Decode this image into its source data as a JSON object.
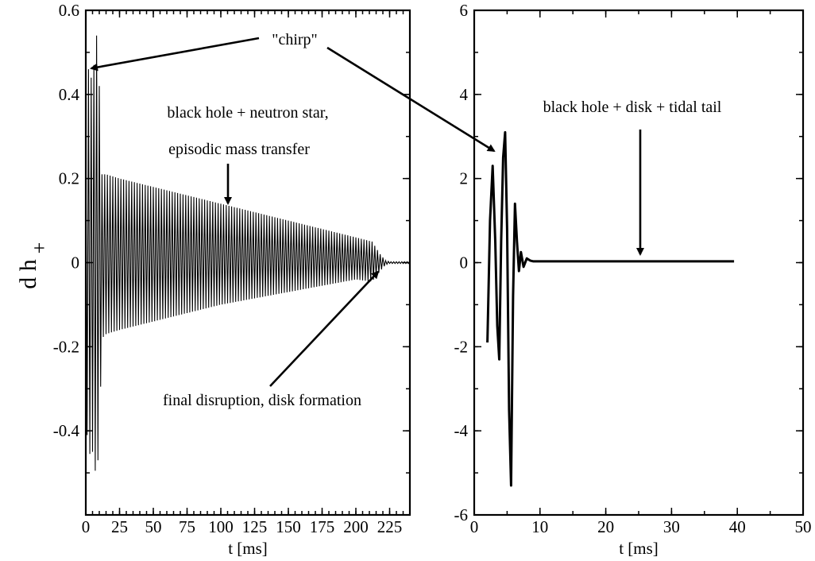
{
  "figure": {
    "ylabel_main": "d h",
    "ylabel_sub": "+"
  },
  "chart_data": [
    {
      "type": "line",
      "title": "",
      "xlabel": "t [ms]",
      "ylabel": "d h+",
      "xlim": [
        0,
        240
      ],
      "ylim": [
        -0.6,
        0.6
      ],
      "xticks": [
        0,
        25,
        50,
        75,
        100,
        125,
        150,
        175,
        200,
        225
      ],
      "xtick_labels": [
        "0",
        "25",
        "50",
        "75",
        "100",
        "125",
        "150",
        "175",
        "200",
        "225"
      ],
      "yticks": [
        -0.4,
        -0.2,
        0,
        0.2,
        0.4,
        0.6
      ],
      "ytick_labels": [
        "-0.4",
        "-0.2",
        "0",
        "0.2",
        "0.4",
        "0.6"
      ],
      "grid": false,
      "series": [
        {
          "style": "dense-oscillation",
          "sample_interval_ms": 1,
          "t_start_ms": 0,
          "t_end_ms": 240,
          "envelope": {
            "t": [
              0,
              2,
              4,
              6,
              8,
              10,
              12,
              15,
              25,
              50,
              75,
              100,
              125,
              150,
              175,
              200,
              212,
              218,
              222,
              225,
              240
            ],
            "upper": [
              0.35,
              0.46,
              0.44,
              0.47,
              0.54,
              0.42,
              0.21,
              0.21,
              0.2,
              0.18,
              0.16,
              0.14,
              0.12,
              0.1,
              0.08,
              0.06,
              0.05,
              0.02,
              0.005,
              0.002,
              0.002
            ],
            "lower": [
              -0.35,
              -0.47,
              -0.44,
              -0.46,
              -0.53,
              -0.41,
              -0.18,
              -0.17,
              -0.16,
              -0.14,
              -0.12,
              -0.1,
              -0.085,
              -0.07,
              -0.055,
              -0.04,
              -0.045,
              -0.02,
              -0.005,
              -0.002,
              -0.002
            ]
          }
        }
      ],
      "annotations": [
        {
          "text": "\"chirp\""
        },
        {
          "text": "black hole + neutron star,"
        },
        {
          "text": "episodic mass transfer"
        },
        {
          "text": "final disruption, disk formation"
        }
      ]
    },
    {
      "type": "line",
      "title": "",
      "xlabel": "t [ms]",
      "ylabel": "",
      "xlim": [
        0,
        50
      ],
      "ylim": [
        -6,
        6
      ],
      "xticks": [
        0,
        10,
        20,
        30,
        40,
        50
      ],
      "xtick_labels": [
        "0",
        "10",
        "20",
        "30",
        "40",
        "50"
      ],
      "yticks": [
        -6,
        -4,
        -2,
        0,
        2,
        4,
        6
      ],
      "ytick_labels": [
        "-6",
        "-4",
        "-2",
        "0",
        "2",
        "4",
        "6"
      ],
      "grid": false,
      "series": [
        {
          "style": "thick-line",
          "x": [
            2.0,
            2.4,
            2.8,
            3.2,
            3.5,
            3.8,
            4.1,
            4.4,
            4.7,
            5.0,
            5.3,
            5.6,
            5.9,
            6.2,
            6.5,
            6.8,
            7.1,
            7.5,
            8.0,
            8.5,
            9.0,
            10.0,
            15.0,
            20.0,
            25.0,
            30.0,
            35.0,
            39.5
          ],
          "y": [
            -1.9,
            1.0,
            2.3,
            0.5,
            -1.5,
            -2.3,
            0.5,
            2.5,
            3.1,
            0.8,
            -3.5,
            -5.3,
            -0.8,
            1.4,
            0.5,
            -0.2,
            0.25,
            -0.1,
            0.1,
            0.05,
            0.03,
            0.03,
            0.03,
            0.03,
            0.03,
            0.03,
            0.03,
            0.03
          ]
        }
      ],
      "annotations": [
        {
          "text": "black hole + disk + tidal tail"
        }
      ]
    }
  ]
}
